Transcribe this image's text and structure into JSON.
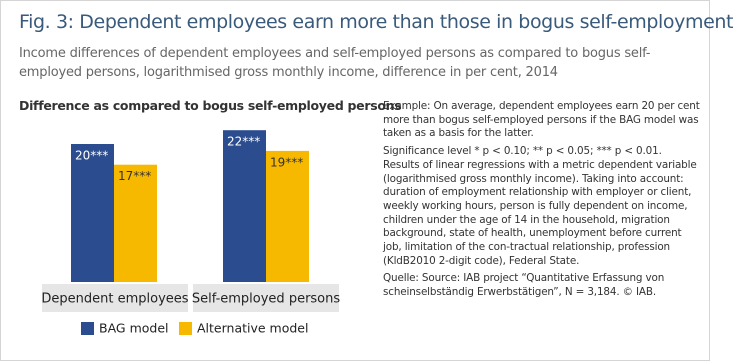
{
  "chart_data": {
    "type": "bar",
    "title": "Fig. 3: Dependent employees earn more than those in bogus self-employment",
    "subtitle": "Income differences of dependent employees and self-employed persons as compared to bogus self-employed persons, logarithmised gross monthly income, difference in per cent, 2014",
    "chart_title": "Difference as compared to bogus self-employed persons",
    "categories": [
      "Dependent employees",
      "Self-employed persons"
    ],
    "series": [
      {
        "name": "BAG model",
        "color": "#2b4c8f",
        "values": [
          20,
          22
        ],
        "value_labels": [
          "20***",
          "22***"
        ]
      },
      {
        "name": "Alternative model",
        "color": "#f7b900",
        "values": [
          17,
          19
        ],
        "value_labels": [
          "17***",
          "19***"
        ]
      }
    ],
    "notes": [
      "Example: On average, dependent employees earn 20 per cent more than bogus self-employed persons if the BAG model was taken as a basis for the latter.",
      "Significance level * p < 0.10; ** p < 0.05; *** p < 0.01. Results of linear regressions with a metric dependent variable (logarithmised gross monthly income). Taking into account: duration of employment relationship with employer or client, weekly working hours, person is fully dependent on income, children under the age of 14 in the household, migration background, state of health, unemployment before current job, limitation of the con-tractual relationship, profession (KldB2010 2-digit code), Federal State.",
      "Quelle: Source: IAB project “Quantitative Erfassung von scheinselbständig Erwerbstätigen”, N = 3,184. © IAB."
    ]
  }
}
